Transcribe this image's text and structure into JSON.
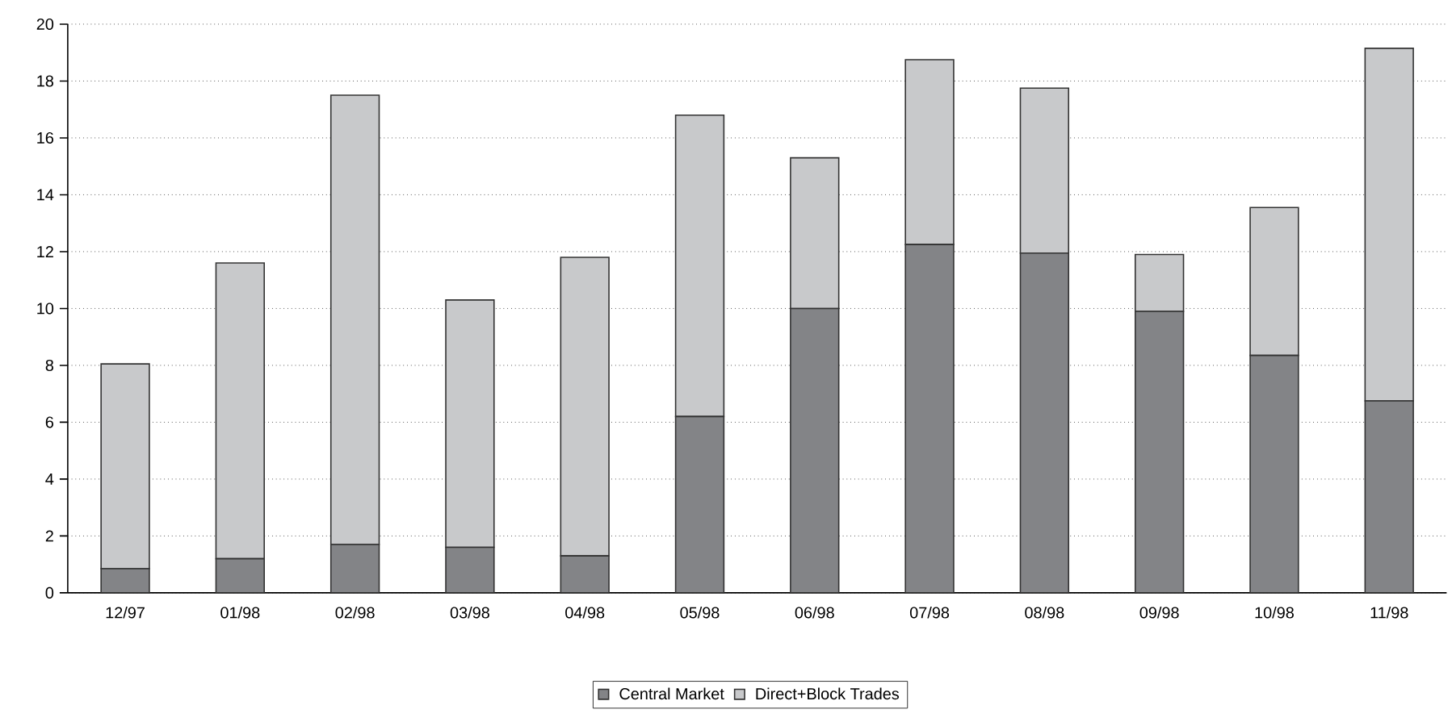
{
  "chart_data": {
    "type": "bar",
    "stacked": true,
    "categories": [
      "12/97",
      "01/98",
      "02/98",
      "03/98",
      "04/98",
      "05/98",
      "06/98",
      "07/98",
      "08/98",
      "09/98",
      "10/98",
      "11/98"
    ],
    "series": [
      {
        "name": "Central Market",
        "color": "#838487",
        "values": [
          0.85,
          1.2,
          1.7,
          1.6,
          1.3,
          6.2,
          10.0,
          12.25,
          11.95,
          9.9,
          8.35,
          6.75
        ]
      },
      {
        "name": "Direct+Block Trades",
        "color": "#c8c9cb",
        "values": [
          7.2,
          10.4,
          15.8,
          8.7,
          10.5,
          10.6,
          5.3,
          6.5,
          5.8,
          2.0,
          5.2,
          12.4
        ]
      }
    ],
    "ylim": [
      0,
      20
    ],
    "yticks": [
      0,
      2,
      4,
      6,
      8,
      10,
      12,
      14,
      16,
      18,
      20
    ],
    "grid": "y",
    "legend": "bottom"
  }
}
